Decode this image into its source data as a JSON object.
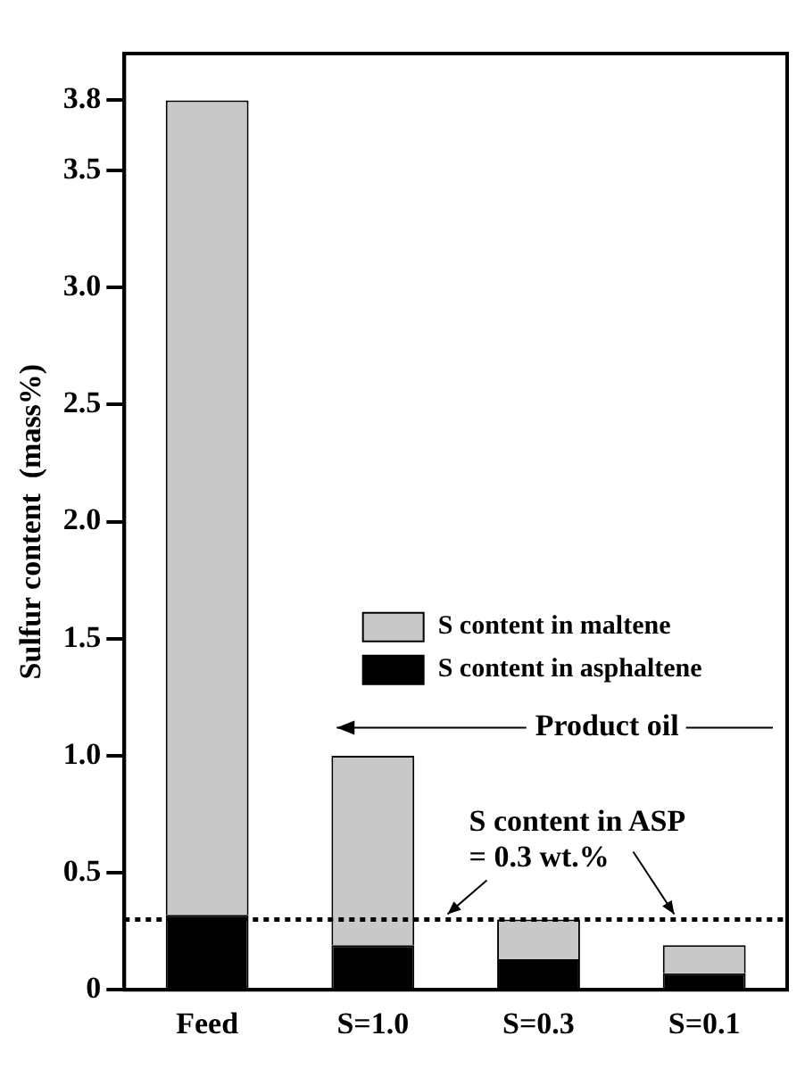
{
  "chart_data": {
    "type": "bar",
    "ylabel": "Sulfur content  (mass%)",
    "categories": [
      "Feed",
      "S=1.0",
      "S=0.3",
      "S=0.1"
    ],
    "stacked": true,
    "series": [
      {
        "name": "S content in asphaltene",
        "color": "#000000",
        "values": [
          0.32,
          0.19,
          0.13,
          0.07
        ]
      },
      {
        "name": "S content in maltene",
        "color": "#c8c8c8",
        "values": [
          3.48,
          0.81,
          0.17,
          0.12
        ]
      }
    ],
    "ylim": [
      0,
      4.0
    ],
    "yticks": [
      0,
      0.5,
      {
        "value": 1,
        "label": "1.0"
      },
      1.5,
      {
        "value": 2,
        "label": "2.0"
      },
      2.5,
      {
        "value": 3,
        "label": "3.0"
      },
      3.5,
      3.8
    ],
    "ref_lines": [
      {
        "axis": "y",
        "value": 0.3,
        "label": "S content in ASP\n= 0.3 wt.%",
        "color": "#000000",
        "line_style": "dotted"
      }
    ],
    "annotations": [
      "Product oil"
    ],
    "legend": "right",
    "grid": false
  }
}
